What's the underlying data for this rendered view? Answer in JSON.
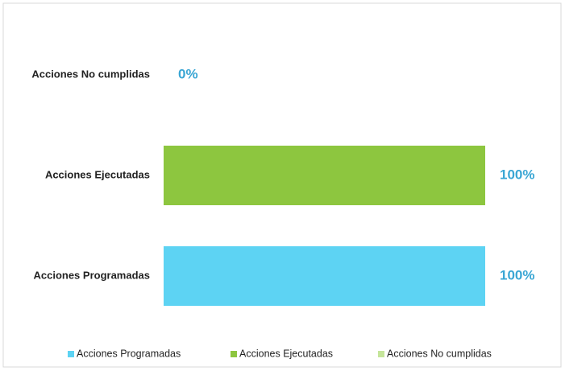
{
  "chart_data": {
    "type": "hbar",
    "categories": [
      "Acciones Programadas",
      "Acciones Ejecutadas",
      "Acciones No cumplidas"
    ],
    "values": [
      100,
      100,
      0
    ],
    "value_labels": [
      "100%",
      "100%",
      "0%"
    ],
    "colors": [
      "#5dd3f3",
      "#8dc63f",
      "#c5e59a"
    ],
    "xlim": [
      0,
      100
    ],
    "legend": "bottom"
  }
}
